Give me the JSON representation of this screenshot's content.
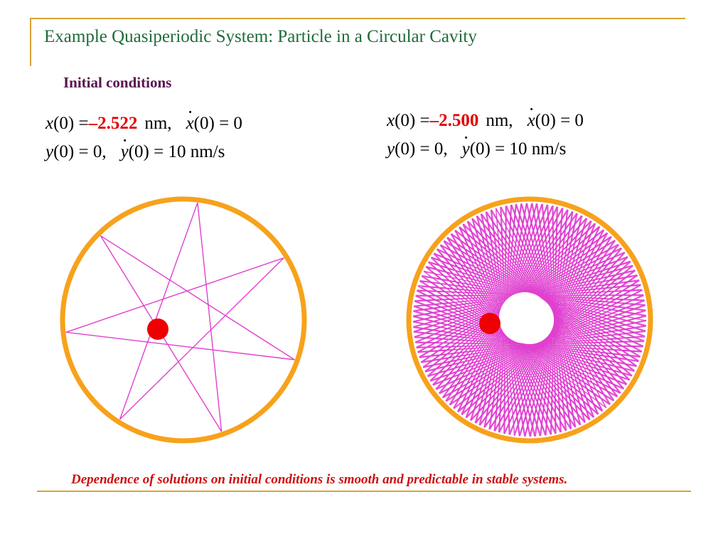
{
  "slide": {
    "title": "Example Quasiperiodic System: Particle in a Circular Cavity",
    "subtitle": "Initial conditions",
    "caption": "Dependence of solutions on initial conditions is smooth and predictable in stable systems."
  },
  "left": {
    "x0_label": "x",
    "x0_arg": "(0) = ",
    "x0_value": "–2.522",
    "x0_unit": "nm,",
    "xdot_label": "x",
    "xdot_rest": "(0) = 0",
    "y0_label": "y",
    "y0_rest": "(0) = 0,",
    "ydot_label": "y",
    "ydot_rest": "(0) = 10 nm/s",
    "pattern": "seven-point star",
    "star_points": 7
  },
  "right": {
    "x0_label": "x",
    "x0_arg": "(0) = ",
    "x0_value": "–2.500",
    "x0_unit": "nm,",
    "xdot_label": "x",
    "xdot_rest": "(0) = 0",
    "y0_label": "y",
    "y0_rest": "(0) = 0,",
    "ydot_label": "y",
    "ydot_rest": "(0) = 10 nm/s",
    "pattern": "dense quasiperiodic rosette"
  },
  "colors": {
    "frame": "#d9a433",
    "title": "#1f6b3a",
    "subtitle": "#5a1450",
    "highlight": "#e00000",
    "cavity_wall": "#f7a21b",
    "trajectory": "#e040d0",
    "particle": "#ee0000"
  }
}
